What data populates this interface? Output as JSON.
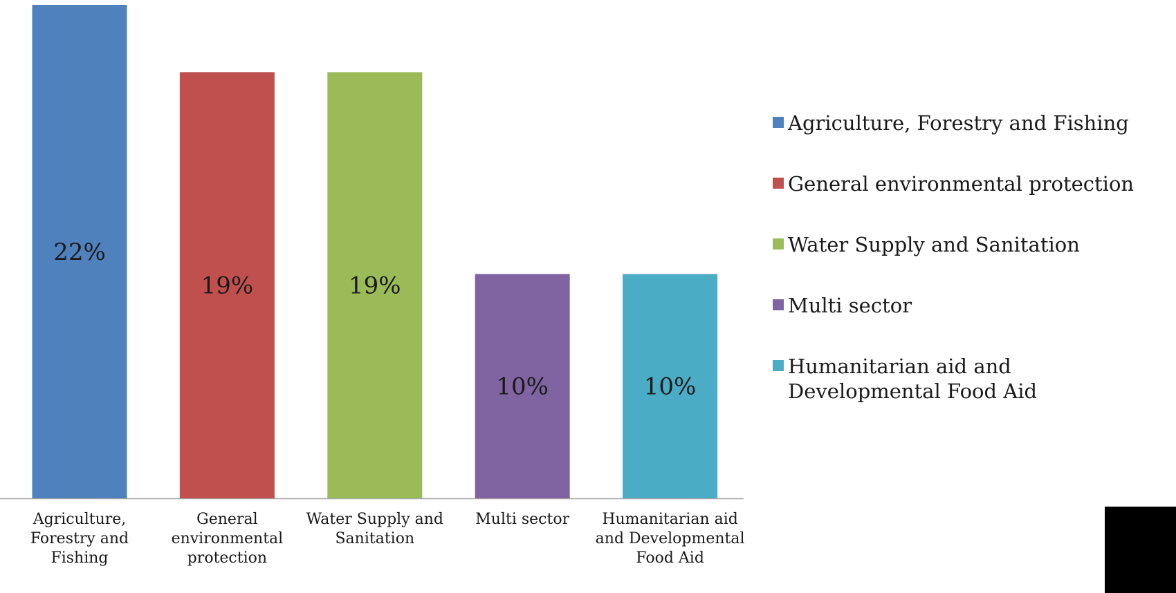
{
  "chart_data": {
    "type": "bar",
    "title": "",
    "xlabel": "",
    "ylabel": "",
    "ylim": [
      0,
      22
    ],
    "grid": false,
    "legend_position": "right",
    "categories": [
      "Agriculture, Forestry and Fishing",
      "General environmental protection",
      "Water Supply and Sanitation",
      "Multi sector",
      "Humanitarian aid and Developmental Food Aid"
    ],
    "values": [
      22,
      19,
      19,
      10,
      10
    ],
    "data_labels": [
      "22%",
      "19%",
      "19%",
      "10%",
      "10%"
    ],
    "colors": [
      "#4F81BD",
      "#C0504D",
      "#9BBB59",
      "#8064A2",
      "#4BACC6"
    ],
    "legend": [
      "Agriculture, Forestry and Fishing",
      "General environmental protection",
      "Water Supply and Sanitation",
      "Multi sector",
      "Humanitarian aid and Developmental Food Aid"
    ]
  },
  "axis_color": "#A6A6A6"
}
